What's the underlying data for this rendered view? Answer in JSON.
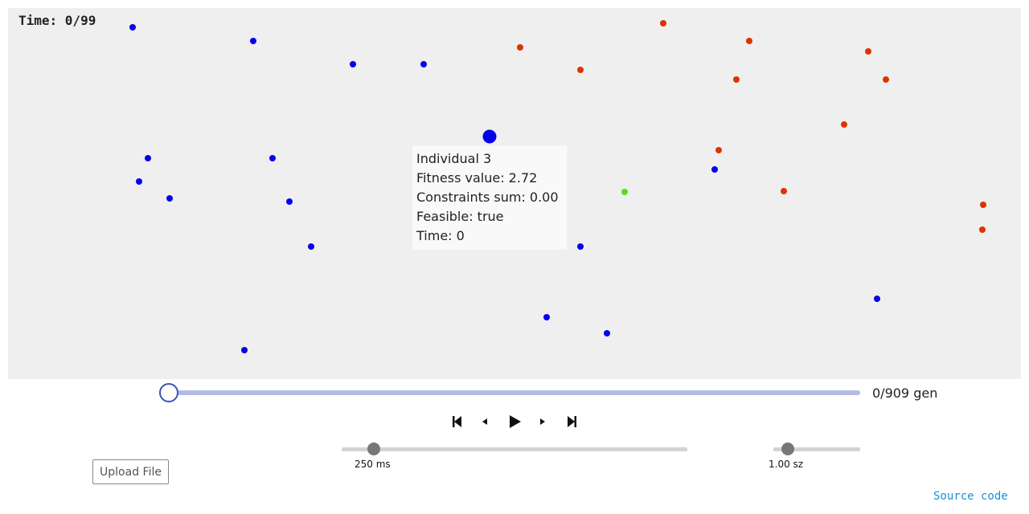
{
  "time_label": "Time: 0/99",
  "tooltip": {
    "line1": "Individual 3",
    "line2": "Fitness value: 2.72",
    "line3": "Constraints sum: 0.00",
    "line4": "Feasible: true",
    "line5": "Time: 0"
  },
  "colors": {
    "feasible": "#0000ee",
    "infeasible": "#dd3300",
    "best": "#55dd22",
    "canvas_bg": "#efefef"
  },
  "generation_slider": {
    "label": "0/909 gen",
    "current": 0,
    "total": 909
  },
  "controls": {
    "first": "skip-to-start-icon",
    "prev": "step-back-icon",
    "play": "play-icon",
    "next": "step-forward-icon",
    "last": "skip-to-end-icon"
  },
  "speed_slider": {
    "label": "250 ms",
    "value_fraction": 0.09
  },
  "size_slider": {
    "label": "1.00 sz",
    "value_fraction": 0.17
  },
  "upload_button": "Upload File",
  "source_link": "Source code"
}
